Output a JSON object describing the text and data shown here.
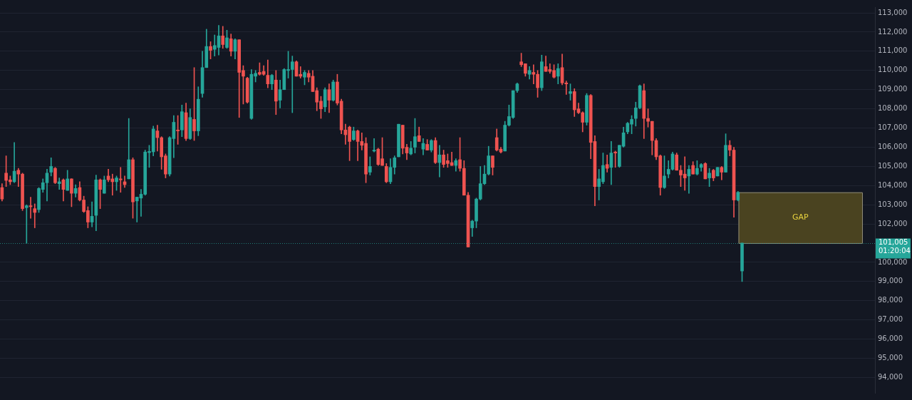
{
  "chart_data": {
    "type": "candlestick",
    "categories": [
      null,
      null,
      null,
      null,
      null,
      null,
      null,
      null,
      null,
      null,
      null,
      null,
      null,
      null,
      null,
      null,
      null,
      null,
      null,
      null,
      null,
      null,
      null,
      null,
      null,
      null,
      null,
      null,
      null,
      null,
      null,
      null,
      null,
      null,
      null,
      null,
      null,
      null,
      null,
      null,
      null,
      null,
      null,
      null,
      null,
      null,
      null,
      null,
      null,
      null,
      null,
      null,
      null,
      null,
      null,
      null,
      null,
      null,
      null,
      null,
      null,
      null,
      null,
      null,
      null,
      null,
      null,
      null,
      null,
      null,
      null,
      null,
      null,
      null,
      null,
      null,
      null,
      null,
      null,
      null,
      null,
      null,
      null,
      null,
      null,
      null,
      null,
      null,
      null,
      null,
      null,
      null,
      null,
      null,
      null,
      null,
      null,
      null,
      null,
      null,
      null,
      null,
      null,
      null,
      null,
      null,
      null,
      null,
      null,
      null,
      null,
      null,
      null,
      null,
      null,
      null,
      null,
      null,
      null,
      null,
      null,
      null,
      null,
      null,
      null,
      null,
      null,
      null,
      null,
      null,
      null,
      null,
      null,
      null,
      null,
      null,
      null,
      null,
      null,
      null,
      null,
      null,
      null,
      null,
      null,
      null,
      null,
      null,
      null,
      null,
      null,
      null,
      null,
      null,
      null,
      null,
      null,
      null,
      null,
      null,
      null,
      null,
      null,
      null,
      null,
      null,
      null,
      null,
      null,
      null,
      null,
      null,
      null,
      null,
      null,
      null,
      null,
      null,
      null,
      null,
      null,
      null,
      null,
      null,
      null,
      null,
      null,
      null,
      null,
      null,
      null,
      null,
      null,
      null,
      null,
      null,
      null,
      null,
      null,
      null,
      null,
      null,
      null,
      null,
      null,
      null,
      null,
      null,
      null,
      null,
      null,
      null,
      null,
      null
    ],
    "ohlc": [
      [
        103900,
        104100,
        103200,
        103300
      ],
      [
        104650,
        105550,
        103950,
        104270
      ],
      [
        104300,
        104500,
        104050,
        104200
      ],
      [
        104200,
        106250,
        104150,
        104750
      ],
      [
        104800,
        104900,
        103950,
        104600
      ],
      [
        104600,
        104650,
        102700,
        102800
      ],
      [
        102850,
        103000,
        101000,
        102950
      ],
      [
        102950,
        103400,
        102300,
        102900
      ],
      [
        102800,
        103050,
        101800,
        102600
      ],
      [
        102750,
        103900,
        102600,
        103850
      ],
      [
        103800,
        104350,
        103650,
        104150
      ],
      [
        104150,
        104850,
        103200,
        104650
      ],
      [
        104700,
        105450,
        104500,
        105000
      ],
      [
        104900,
        104950,
        104100,
        104150
      ],
      [
        104100,
        104400,
        103800,
        104200
      ],
      [
        104300,
        104350,
        103200,
        103800
      ],
      [
        103750,
        104800,
        103750,
        104350
      ],
      [
        104350,
        104360,
        102900,
        103600
      ],
      [
        103600,
        104050,
        103400,
        103850
      ],
      [
        103900,
        104200,
        103200,
        103250
      ],
      [
        103250,
        103450,
        102600,
        102650
      ],
      [
        102700,
        102900,
        101800,
        102100
      ],
      [
        102100,
        103150,
        101850,
        102400
      ],
      [
        102450,
        104550,
        101650,
        104300
      ],
      [
        104300,
        104350,
        102800,
        103800
      ],
      [
        103600,
        104500,
        103600,
        104300
      ],
      [
        104500,
        104850,
        104200,
        104300
      ],
      [
        104350,
        104600,
        103500,
        104200
      ],
      [
        104200,
        104500,
        103750,
        104400
      ],
      [
        104350,
        104950,
        103650,
        104300
      ],
      [
        104200,
        104500,
        103900,
        104050
      ],
      [
        104350,
        107500,
        104350,
        105350
      ],
      [
        105350,
        105450,
        102300,
        103150
      ],
      [
        103200,
        103400,
        102100,
        103400
      ],
      [
        103350,
        103800,
        102400,
        103550
      ],
      [
        103550,
        105850,
        103500,
        105750
      ],
      [
        105720,
        106100,
        104950,
        105780
      ],
      [
        105760,
        107100,
        105550,
        106950
      ],
      [
        106850,
        107150,
        105800,
        106500
      ],
      [
        106500,
        106550,
        104850,
        105500
      ],
      [
        105550,
        105650,
        104400,
        104600
      ],
      [
        104600,
        106550,
        104500,
        106500
      ],
      [
        106450,
        107650,
        105450,
        107300
      ],
      [
        106900,
        107650,
        106150,
        106850
      ],
      [
        106900,
        108200,
        106550,
        107850
      ],
      [
        107800,
        108300,
        106350,
        106450
      ],
      [
        106450,
        108000,
        106400,
        107550
      ],
      [
        107450,
        110150,
        106350,
        106850
      ],
      [
        106850,
        109150,
        106600,
        108500
      ],
      [
        108800,
        111000,
        108600,
        110150
      ],
      [
        110150,
        112150,
        110150,
        111250
      ],
      [
        111250,
        111500,
        110600,
        111050
      ],
      [
        111100,
        111850,
        110750,
        111300
      ],
      [
        111200,
        112350,
        110800,
        111800
      ],
      [
        111800,
        112300,
        111150,
        111350
      ],
      [
        111200,
        112100,
        111150,
        111700
      ],
      [
        111650,
        111900,
        110750,
        111000
      ],
      [
        111000,
        111650,
        110600,
        111600
      ],
      [
        111600,
        111600,
        107550,
        109900
      ],
      [
        110000,
        110250,
        108250,
        109700
      ],
      [
        109600,
        109650,
        108300,
        108350
      ],
      [
        107500,
        110050,
        107450,
        109800
      ],
      [
        109700,
        110000,
        109400,
        109850
      ],
      [
        109900,
        110400,
        109750,
        109800
      ],
      [
        109950,
        110250,
        109750,
        109800
      ],
      [
        109750,
        110550,
        109100,
        109300
      ],
      [
        109300,
        109800,
        109000,
        109750
      ],
      [
        109500,
        110000,
        107700,
        108400
      ],
      [
        108450,
        109500,
        108050,
        109000
      ],
      [
        109000,
        110100,
        109000,
        110050
      ],
      [
        110000,
        111000,
        109600,
        110050
      ],
      [
        110050,
        110750,
        107800,
        110450
      ],
      [
        110450,
        110500,
        109700,
        109700
      ],
      [
        109800,
        110200,
        109600,
        109700
      ],
      [
        109650,
        110000,
        109250,
        109900
      ],
      [
        109850,
        110000,
        109400,
        109650
      ],
      [
        109700,
        110000,
        108900,
        108900
      ],
      [
        108950,
        109100,
        107900,
        108350
      ],
      [
        108400,
        108650,
        107500,
        108000
      ],
      [
        108100,
        109100,
        107850,
        109000
      ],
      [
        109000,
        109300,
        107800,
        108450
      ],
      [
        108450,
        109500,
        108400,
        109400
      ],
      [
        109400,
        109800,
        108200,
        108300
      ],
      [
        108400,
        108500,
        106700,
        106900
      ],
      [
        106900,
        107200,
        106150,
        106650
      ],
      [
        107050,
        107100,
        105300,
        106300
      ],
      [
        106400,
        107050,
        106350,
        106850
      ],
      [
        106850,
        106900,
        105300,
        106300
      ],
      [
        106300,
        106750,
        105850,
        106100
      ],
      [
        106200,
        106500,
        104150,
        104600
      ],
      [
        104700,
        105500,
        104550,
        105000
      ],
      [
        105800,
        106450,
        105750,
        105850
      ],
      [
        105900,
        105950,
        105050,
        105100
      ],
      [
        105400,
        106500,
        105050,
        105050
      ],
      [
        105000,
        105150,
        104150,
        104200
      ],
      [
        104200,
        105400,
        104100,
        104950
      ],
      [
        104950,
        105550,
        104600,
        105450
      ],
      [
        105500,
        107200,
        105500,
        107200
      ],
      [
        107150,
        107150,
        105650,
        105950
      ],
      [
        106000,
        106150,
        105350,
        105700
      ],
      [
        105650,
        106300,
        105600,
        105950
      ],
      [
        106000,
        107500,
        105700,
        106550
      ],
      [
        106600,
        107050,
        106300,
        106300
      ],
      [
        105900,
        106450,
        105600,
        106200
      ],
      [
        106150,
        106400,
        105850,
        105850
      ],
      [
        105850,
        106400,
        105750,
        106350
      ],
      [
        106350,
        106500,
        105150,
        105200
      ],
      [
        105200,
        106100,
        104450,
        105600
      ],
      [
        105600,
        105850,
        104950,
        105100
      ],
      [
        105300,
        105650,
        104950,
        105150
      ],
      [
        105200,
        105750,
        105050,
        105050
      ],
      [
        105050,
        105400,
        104750,
        105300
      ],
      [
        105350,
        106500,
        104750,
        104900
      ],
      [
        104900,
        105300,
        103500,
        103500
      ],
      [
        103500,
        103650,
        100800,
        100800
      ],
      [
        101800,
        102200,
        101350,
        102150
      ],
      [
        102150,
        103350,
        101800,
        103300
      ],
      [
        103300,
        105000,
        103250,
        104100
      ],
      [
        104100,
        105050,
        104050,
        104600
      ],
      [
        104600,
        106050,
        104550,
        105550
      ],
      [
        105550,
        105550,
        104550,
        104950
      ],
      [
        106500,
        106950,
        105800,
        105850
      ],
      [
        105900,
        106000,
        105700,
        105750
      ],
      [
        105800,
        107350,
        105800,
        107150
      ],
      [
        107150,
        108200,
        107100,
        107600
      ],
      [
        107550,
        108950,
        107500,
        108950
      ],
      [
        108950,
        109350,
        108850,
        109300
      ],
      [
        110450,
        110900,
        110200,
        110300
      ],
      [
        110350,
        110350,
        109700,
        109850
      ],
      [
        109800,
        110200,
        109550,
        110000
      ],
      [
        109900,
        110300,
        109300,
        109800
      ],
      [
        109800,
        110000,
        108600,
        109100
      ],
      [
        109100,
        110800,
        108950,
        110450
      ],
      [
        110200,
        110750,
        109950,
        109950
      ],
      [
        110050,
        110350,
        109850,
        109950
      ],
      [
        110000,
        110300,
        109600,
        109650
      ],
      [
        109700,
        110350,
        109300,
        110100
      ],
      [
        110150,
        110850,
        109250,
        109350
      ],
      [
        109350,
        109450,
        108750,
        109300
      ],
      [
        108800,
        109300,
        108450,
        108900
      ],
      [
        108900,
        109050,
        107600,
        107950
      ],
      [
        108000,
        108300,
        107750,
        107800
      ],
      [
        107800,
        107850,
        106800,
        107300
      ],
      [
        107300,
        108800,
        107150,
        108700
      ],
      [
        108700,
        108750,
        105400,
        106250
      ],
      [
        106300,
        106600,
        102950,
        103950
      ],
      [
        103950,
        104850,
        103250,
        104350
      ],
      [
        104200,
        105700,
        104100,
        105050
      ],
      [
        105100,
        105600,
        104700,
        104900
      ],
      [
        104950,
        106300,
        104050,
        105700
      ],
      [
        105750,
        105800,
        104950,
        105700
      ],
      [
        105000,
        106100,
        104950,
        106100
      ],
      [
        106050,
        107050,
        106000,
        106750
      ],
      [
        106800,
        107300,
        106700,
        107250
      ],
      [
        107200,
        107650,
        106700,
        107450
      ],
      [
        107500,
        108350,
        107100,
        108050
      ],
      [
        108050,
        109250,
        108000,
        109200
      ],
      [
        108950,
        109300,
        106450,
        107500
      ],
      [
        107500,
        108000,
        107050,
        107350
      ],
      [
        107350,
        107350,
        105600,
        106350
      ],
      [
        106350,
        106450,
        105350,
        105500
      ],
      [
        105550,
        105600,
        103500,
        103900
      ],
      [
        103900,
        105550,
        103850,
        104500
      ],
      [
        104600,
        105300,
        104400,
        104850
      ],
      [
        104850,
        105750,
        104800,
        105650
      ],
      [
        105600,
        105700,
        104800,
        104800
      ],
      [
        104800,
        105050,
        103950,
        104550
      ],
      [
        104600,
        105500,
        103750,
        104400
      ],
      [
        104500,
        105050,
        103600,
        104850
      ],
      [
        105050,
        105250,
        104600,
        104600
      ],
      [
        104600,
        105300,
        104550,
        104900
      ],
      [
        104950,
        105150,
        104750,
        105100
      ],
      [
        105150,
        105200,
        104350,
        104350
      ],
      [
        104400,
        104900,
        103950,
        104650
      ],
      [
        104800,
        104850,
        104250,
        104400
      ],
      [
        104500,
        104950,
        104500,
        104950
      ],
      [
        104950,
        105000,
        104300,
        104700
      ],
      [
        104700,
        106700,
        104700,
        106100
      ],
      [
        106100,
        106350,
        105550,
        105850
      ],
      [
        105850,
        106000,
        102350,
        103250
      ],
      [
        103250,
        103700,
        103200,
        103650
      ],
      [
        99550,
        101005,
        99000,
        101005
      ],
      null,
      null,
      null,
      null,
      null,
      null,
      null,
      null,
      null,
      null,
      null,
      null,
      null,
      null,
      null,
      null,
      null,
      null,
      null,
      null,
      null,
      null,
      null,
      null,
      null,
      null,
      null,
      null,
      null,
      null,
      null,
      null
    ],
    "ylim": [
      93200,
      113300
    ],
    "yticks": [
      {
        "value": 94000,
        "label": "94,000"
      },
      {
        "value": 95000,
        "label": "95,000"
      },
      {
        "value": 96000,
        "label": "96,000"
      },
      {
        "value": 97000,
        "label": "97,000"
      },
      {
        "value": 98000,
        "label": "98,000"
      },
      {
        "value": 99000,
        "label": "99,000"
      },
      {
        "value": 100000,
        "label": "100,000"
      },
      {
        "value": 102000,
        "label": "102,000"
      },
      {
        "value": 103000,
        "label": "103,000"
      },
      {
        "value": 104000,
        "label": "104,000"
      },
      {
        "value": 105000,
        "label": "105,000"
      },
      {
        "value": 106000,
        "label": "106,000"
      },
      {
        "value": 107000,
        "label": "107,000"
      },
      {
        "value": 108000,
        "label": "108,000"
      },
      {
        "value": 109000,
        "label": "109,000"
      },
      {
        "value": 110000,
        "label": "110,000"
      },
      {
        "value": 111000,
        "label": "111,000"
      },
      {
        "value": 112000,
        "label": "112,000"
      },
      {
        "value": 113000,
        "label": "113,000"
      }
    ],
    "grid": "y",
    "tick_labels": "y",
    "ref_lines": [
      {
        "axis": "y",
        "value": 101005,
        "label": "101,005",
        "color": "#26a69a",
        "line_style": "dotted"
      }
    ],
    "bands": [
      {
        "axis": "y",
        "from": 101005,
        "to": 103650,
        "label": "GAP",
        "color": "#4a4320"
      }
    ],
    "annotations": [
      "01:20:04"
    ]
  }
}
